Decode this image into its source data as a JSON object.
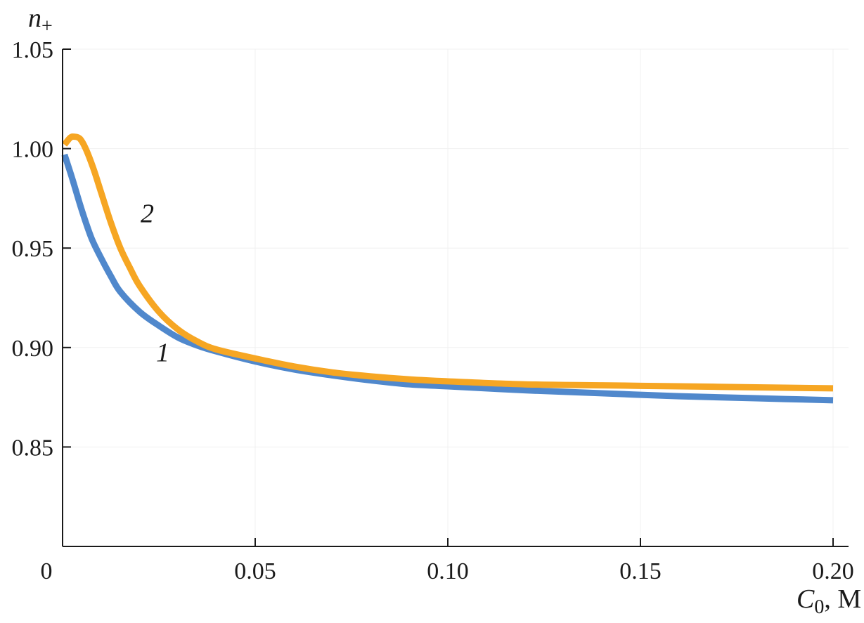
{
  "chart_data": {
    "type": "line",
    "title": "",
    "xlabel": "C",
    "xlabel_sub": "0",
    "xlabel_unit": ", M",
    "ylabel": "n",
    "ylabel_sub": "+",
    "xlim": [
      0,
      0.2
    ],
    "ylim": [
      0.8,
      1.05
    ],
    "x_ticks": [
      {
        "value": 0,
        "label": "0"
      },
      {
        "value": 0.05,
        "label": "0.05"
      },
      {
        "value": 0.1,
        "label": "0.10"
      },
      {
        "value": 0.15,
        "label": "0.15"
      },
      {
        "value": 0.2,
        "label": "0.20"
      }
    ],
    "y_ticks": [
      {
        "value": 0.85,
        "label": "0.85"
      },
      {
        "value": 0.9,
        "label": "0.90"
      },
      {
        "value": 0.95,
        "label": "0.95"
      },
      {
        "value": 1.0,
        "label": "1.00"
      },
      {
        "value": 1.05,
        "label": "1.05"
      }
    ],
    "grid": true,
    "series": [
      {
        "label": "1",
        "color": "#5088cc",
        "label_at": {
          "x": 0.026,
          "y": 0.893
        },
        "points": [
          {
            "x": 0.0005,
            "y": 0.997
          },
          {
            "x": 0.0025,
            "y": 0.985
          },
          {
            "x": 0.005,
            "y": 0.969
          },
          {
            "x": 0.0075,
            "y": 0.955
          },
          {
            "x": 0.01,
            "y": 0.945
          },
          {
            "x": 0.0125,
            "y": 0.936
          },
          {
            "x": 0.015,
            "y": 0.928
          },
          {
            "x": 0.02,
            "y": 0.918
          },
          {
            "x": 0.025,
            "y": 0.911
          },
          {
            "x": 0.03,
            "y": 0.905
          },
          {
            "x": 0.035,
            "y": 0.901
          },
          {
            "x": 0.04,
            "y": 0.898
          },
          {
            "x": 0.05,
            "y": 0.893
          },
          {
            "x": 0.06,
            "y": 0.889
          },
          {
            "x": 0.07,
            "y": 0.886
          },
          {
            "x": 0.08,
            "y": 0.8835
          },
          {
            "x": 0.09,
            "y": 0.8815
          },
          {
            "x": 0.1,
            "y": 0.8805
          },
          {
            "x": 0.12,
            "y": 0.8785
          },
          {
            "x": 0.14,
            "y": 0.877
          },
          {
            "x": 0.16,
            "y": 0.8755
          },
          {
            "x": 0.18,
            "y": 0.8745
          },
          {
            "x": 0.2,
            "y": 0.8735
          }
        ]
      },
      {
        "label": "2",
        "color": "#f6a623",
        "label_at": {
          "x": 0.022,
          "y": 0.963
        },
        "points": [
          {
            "x": 0.0005,
            "y": 1.002
          },
          {
            "x": 0.002,
            "y": 1.0055
          },
          {
            "x": 0.003,
            "y": 1.006
          },
          {
            "x": 0.0045,
            "y": 1.005
          },
          {
            "x": 0.006,
            "y": 1.0
          },
          {
            "x": 0.008,
            "y": 0.99
          },
          {
            "x": 0.01,
            "y": 0.978
          },
          {
            "x": 0.0125,
            "y": 0.963
          },
          {
            "x": 0.015,
            "y": 0.95
          },
          {
            "x": 0.0175,
            "y": 0.94
          },
          {
            "x": 0.02,
            "y": 0.931
          },
          {
            "x": 0.025,
            "y": 0.918
          },
          {
            "x": 0.03,
            "y": 0.909
          },
          {
            "x": 0.035,
            "y": 0.903
          },
          {
            "x": 0.04,
            "y": 0.899
          },
          {
            "x": 0.05,
            "y": 0.8945
          },
          {
            "x": 0.06,
            "y": 0.8905
          },
          {
            "x": 0.07,
            "y": 0.8875
          },
          {
            "x": 0.08,
            "y": 0.8855
          },
          {
            "x": 0.09,
            "y": 0.884
          },
          {
            "x": 0.1,
            "y": 0.883
          },
          {
            "x": 0.12,
            "y": 0.8815
          },
          {
            "x": 0.14,
            "y": 0.881
          },
          {
            "x": 0.16,
            "y": 0.8805
          },
          {
            "x": 0.18,
            "y": 0.88
          },
          {
            "x": 0.2,
            "y": 0.8795
          }
        ]
      }
    ]
  }
}
